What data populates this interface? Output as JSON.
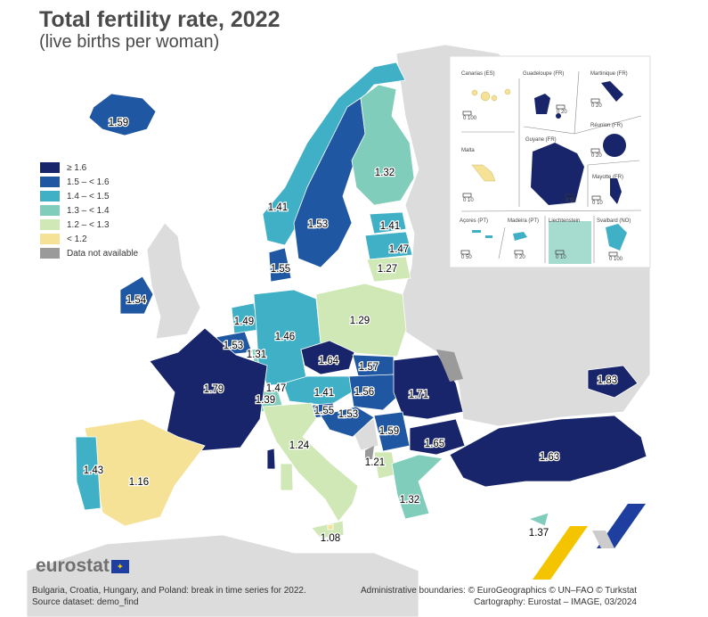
{
  "title": "Total fertility rate, 2022",
  "subtitle": "(live births per woman)",
  "legend": [
    {
      "label": "≥ 1.6",
      "color": "#18256a"
    },
    {
      "label": "1.5 – < 1.6",
      "color": "#1f57a3"
    },
    {
      "label": "1.4 – < 1.5",
      "color": "#40b0c6"
    },
    {
      "label": "1.3 – < 1.4",
      "color": "#80cdbb"
    },
    {
      "label": "1.2 – < 1.3",
      "color": "#cfe8b5"
    },
    {
      "label": "< 1.2",
      "color": "#f5e297"
    },
    {
      "label": "Data not available",
      "color": "#9a9a9a"
    }
  ],
  "values": {
    "IS": "1.59",
    "NO": "1.41",
    "SE": "1.53",
    "FI": "1.32",
    "EE": "1.41",
    "LV": "1.47",
    "LT": "1.27",
    "DK": "1.55",
    "IE": "1.54",
    "NL": "1.49",
    "BE": "1.53",
    "LU": "1.31",
    "DE": "1.46",
    "PL": "1.29",
    "CZ": "1.64",
    "SK": "1.57",
    "FR": "1.79",
    "CH": "1.39",
    "LI": "1.47",
    "AT": "1.41",
    "HU": "1.56",
    "RO": "1.71",
    "SI": "1.55",
    "HR": "1.53",
    "RS": "1.59",
    "BG": "1.65",
    "IT": "1.24",
    "AL": "1.21",
    "TR": "1.63",
    "GE": "1.83",
    "ES": "1.16",
    "PT": "1.43",
    "EL": "1.32",
    "MT": "1.08",
    "CY": "1.37"
  },
  "insets": {
    "canarias": "Canarias (ES)",
    "guadeloupe": "Guadeloupe (FR)",
    "martinique": "Martinique (FR)",
    "reunion": "Réunion (FR)",
    "malta": "Malta",
    "guyane": "Guyane (FR)",
    "mayotte": "Mayotte (FR)",
    "acores": "Açores (PT)",
    "madeira": "Madeira (PT)",
    "liechtenstein": "Liechtenstein",
    "svalbard": "Svalbard (NO)",
    "scales": {
      "canarias": "0  100",
      "guadeloupe": "0  20",
      "martinique": "0  20",
      "reunion": "0  20",
      "malta": "0  10",
      "guyane": "0 50",
      "mayotte": "0  10",
      "acores": "0  50",
      "madeira": "0  20",
      "liechtenstein": "0  10",
      "svalbard": "0 100"
    }
  },
  "logo": "eurostat",
  "footer": {
    "note": "Bulgaria, Croatia, Hungary, and Poland: break in time series for 2022.",
    "source": "Source dataset: demo_find",
    "boundaries": "Administrative boundaries: © EuroGeographics © UN–FAO © Turkstat",
    "cartography": "Cartography: Eurostat – IMAGE, 03/2024"
  }
}
